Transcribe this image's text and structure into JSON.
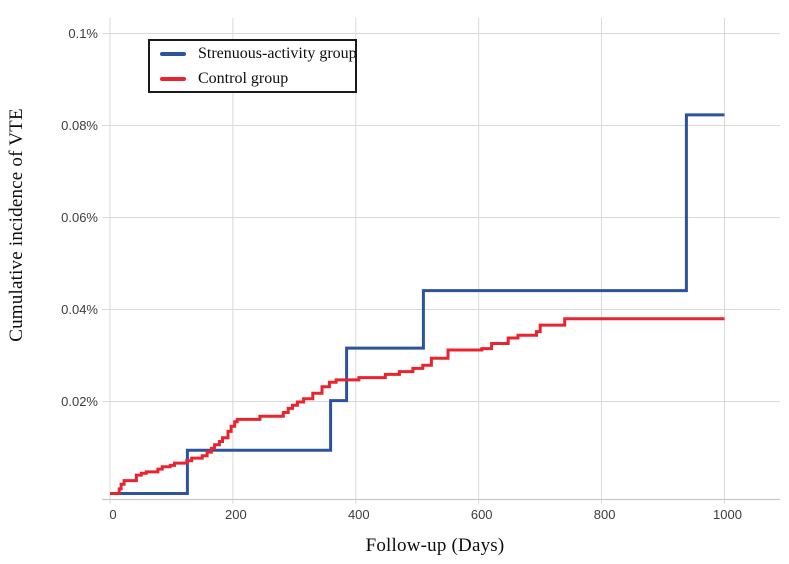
{
  "colors": {
    "accent_blue": "#2d539e",
    "accent_red": "#e8242f",
    "gridline": "#d9d9d9",
    "axis_line": "#c9c9c9",
    "tick_text": "#3d3d3d"
  },
  "chart_data": {
    "type": "line",
    "subtype": "step-cumulative-incidence",
    "title": "",
    "xlabel": "Follow-up (Days)",
    "ylabel": "Cumulative incidence of VTE",
    "xlim": [
      0,
      1090
    ],
    "ylim": [
      0,
      0.103
    ],
    "grid": true,
    "legend_position": "top-left-inside",
    "x_end": 1000,
    "x_ticks": [
      {
        "value": 0,
        "label": "0"
      },
      {
        "value": 200,
        "label": "200"
      },
      {
        "value": 400,
        "label": "400"
      },
      {
        "value": 600,
        "label": "600"
      },
      {
        "value": 800,
        "label": "800"
      },
      {
        "value": 1000,
        "label": "1000"
      }
    ],
    "y_ticks": [
      {
        "value": 0.02,
        "label": "0.02%"
      },
      {
        "value": 0.04,
        "label": "0.04%"
      },
      {
        "value": 0.06,
        "label": "0.06%"
      },
      {
        "value": 0.08,
        "label": "0.08%"
      },
      {
        "value": 0.1,
        "label": "0.1%"
      }
    ],
    "series": [
      {
        "name": "Strenuous-activity group",
        "color": "#2d539e",
        "units": "percent",
        "steps": [
          [
            0,
            0
          ],
          [
            126,
            0.0094
          ],
          [
            359,
            0.0202
          ],
          [
            385,
            0.0316
          ],
          [
            510,
            0.0441
          ],
          [
            938,
            0.0823
          ]
        ]
      },
      {
        "name": "Control group",
        "color": "#e8242f",
        "units": "percent",
        "steps": [
          [
            0,
            0
          ],
          [
            15,
            0.001
          ],
          [
            18,
            0.002
          ],
          [
            23,
            0.0028
          ],
          [
            43,
            0.004
          ],
          [
            51,
            0.0044
          ],
          [
            59,
            0.0047
          ],
          [
            78,
            0.0053
          ],
          [
            85,
            0.0058
          ],
          [
            98,
            0.0061
          ],
          [
            105,
            0.0066
          ],
          [
            125,
            0.0071
          ],
          [
            133,
            0.0077
          ],
          [
            150,
            0.0082
          ],
          [
            158,
            0.009
          ],
          [
            165,
            0.0098
          ],
          [
            170,
            0.0106
          ],
          [
            178,
            0.0113
          ],
          [
            183,
            0.0121
          ],
          [
            192,
            0.0135
          ],
          [
            197,
            0.0146
          ],
          [
            203,
            0.0156
          ],
          [
            207,
            0.0161
          ],
          [
            244,
            0.0168
          ],
          [
            282,
            0.0176
          ],
          [
            290,
            0.0185
          ],
          [
            297,
            0.0192
          ],
          [
            305,
            0.0199
          ],
          [
            315,
            0.0206
          ],
          [
            330,
            0.0218
          ],
          [
            345,
            0.0232
          ],
          [
            357,
            0.0242
          ],
          [
            368,
            0.0247
          ],
          [
            405,
            0.0252
          ],
          [
            448,
            0.0259
          ],
          [
            471,
            0.0265
          ],
          [
            493,
            0.0272
          ],
          [
            509,
            0.0279
          ],
          [
            523,
            0.0294
          ],
          [
            550,
            0.0312
          ],
          [
            605,
            0.0315
          ],
          [
            621,
            0.0326
          ],
          [
            648,
            0.0338
          ],
          [
            664,
            0.0344
          ],
          [
            694,
            0.0352
          ],
          [
            700,
            0.0366
          ],
          [
            740,
            0.038
          ]
        ]
      }
    ]
  }
}
